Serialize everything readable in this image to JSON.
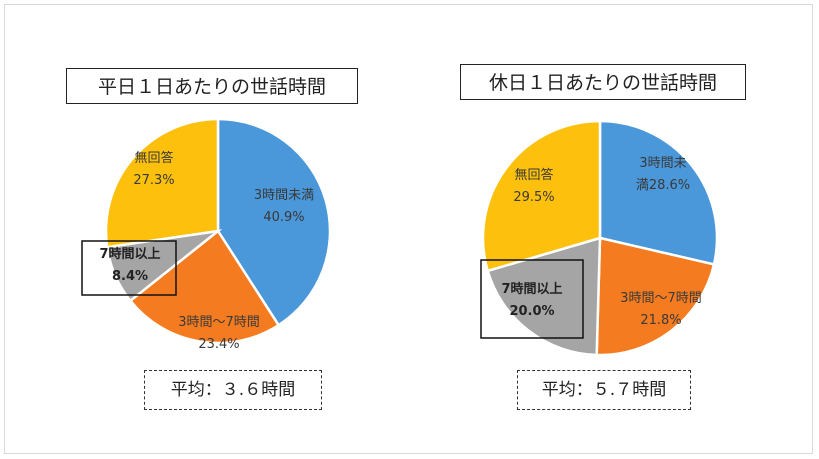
{
  "chart_data": [
    {
      "type": "pie",
      "title": "平日１日あたりの世話時間",
      "average_label": "平均：３.６時間",
      "categories": [
        "3時間未満",
        "3時間〜7時間",
        "7時間以上",
        "無回答"
      ],
      "values": [
        40.9,
        23.4,
        8.4,
        27.3
      ],
      "value_labels": [
        "40.9%",
        "23.4%",
        "8.4%",
        "27.3%"
      ],
      "label_lines": [
        [
          "3時間未満",
          "40.9%"
        ],
        [
          "3時間〜7時間",
          "23.4%"
        ],
        [
          "7時間以上",
          "8.4%"
        ],
        [
          "無回答",
          "27.3%"
        ]
      ],
      "colors": [
        "#4a97d9",
        "#f47b20",
        "#a5a5a5",
        "#fcc00d"
      ],
      "start_angle_deg": 0,
      "direction": "clockwise",
      "highlighted": "7時間以上"
    },
    {
      "type": "pie",
      "title": "休日１日あたりの世話時間",
      "average_label": "平均：５.７時間",
      "categories": [
        "3時間未満",
        "3時間〜7時間",
        "7時間以上",
        "無回答"
      ],
      "values": [
        28.6,
        21.8,
        20.0,
        29.5
      ],
      "value_labels": [
        "28.6%",
        "21.8%",
        "20.0%",
        "29.5%"
      ],
      "label_lines": [
        [
          "3時間未",
          "満28.6%"
        ],
        [
          "3時間〜7時間",
          "21.8%"
        ],
        [
          "7時間以上",
          "20.0%"
        ],
        [
          "無回答",
          "29.5%"
        ]
      ],
      "colors": [
        "#4a97d9",
        "#f47b20",
        "#a5a5a5",
        "#fcc00d"
      ],
      "start_angle_deg": 0,
      "direction": "clockwise",
      "highlighted": "7時間以上"
    }
  ]
}
